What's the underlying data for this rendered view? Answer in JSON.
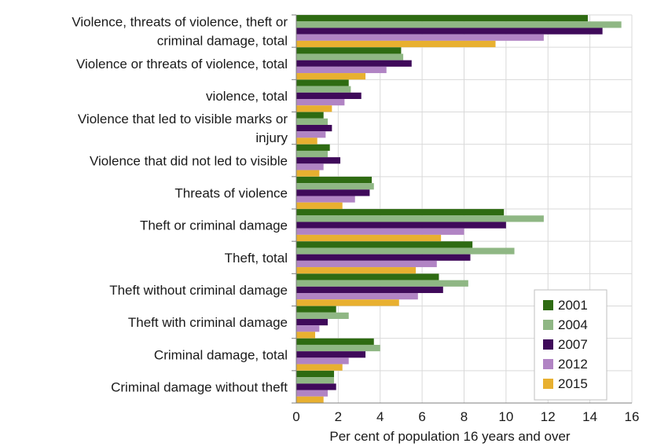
{
  "chart_data": {
    "type": "bar",
    "orientation": "horizontal",
    "title": "",
    "xlabel": "Per cent of population 16 years and over",
    "ylabel": "",
    "xlim": [
      0,
      16
    ],
    "xticks": [
      0,
      2,
      4,
      6,
      8,
      10,
      12,
      14,
      16
    ],
    "grid": true,
    "legend_position": "bottom-right",
    "categories": [
      [
        "Violence, threats of violence, theft or",
        "criminal damage, total"
      ],
      [
        "Violence or threats of violence, total"
      ],
      [
        "violence, total"
      ],
      [
        "Violence that led to visible marks or",
        "injury"
      ],
      [
        "Violence that did not led to visible"
      ],
      [
        "Threats of violence"
      ],
      [
        "Theft or criminal damage"
      ],
      [
        "Theft, total"
      ],
      [
        "Theft without criminal damage"
      ],
      [
        "Theft with criminal damage"
      ],
      [
        "Criminal damage, total"
      ],
      [
        "Criminal damage without theft"
      ]
    ],
    "series": [
      {
        "name": "2001",
        "color": "#2e6b12",
        "values": [
          13.9,
          5.0,
          2.5,
          1.3,
          1.6,
          3.6,
          9.9,
          8.4,
          6.8,
          1.9,
          3.7,
          1.8
        ]
      },
      {
        "name": "2004",
        "color": "#8fb784",
        "values": [
          15.5,
          5.1,
          2.6,
          1.5,
          1.5,
          3.7,
          11.8,
          10.4,
          8.2,
          2.5,
          4.0,
          1.8
        ]
      },
      {
        "name": "2007",
        "color": "#3f0a5a",
        "values": [
          14.6,
          5.5,
          3.1,
          1.7,
          2.1,
          3.5,
          10.0,
          8.3,
          7.0,
          1.5,
          3.3,
          1.9
        ]
      },
      {
        "name": "2012",
        "color": "#b184c4",
        "values": [
          11.8,
          4.3,
          2.3,
          1.4,
          1.3,
          2.8,
          8.0,
          6.7,
          5.8,
          1.1,
          2.5,
          1.5
        ]
      },
      {
        "name": "2015",
        "color": "#e8b030",
        "values": [
          9.5,
          3.3,
          1.7,
          1.0,
          1.1,
          2.2,
          6.9,
          5.7,
          4.9,
          0.9,
          2.2,
          1.3
        ]
      }
    ]
  }
}
